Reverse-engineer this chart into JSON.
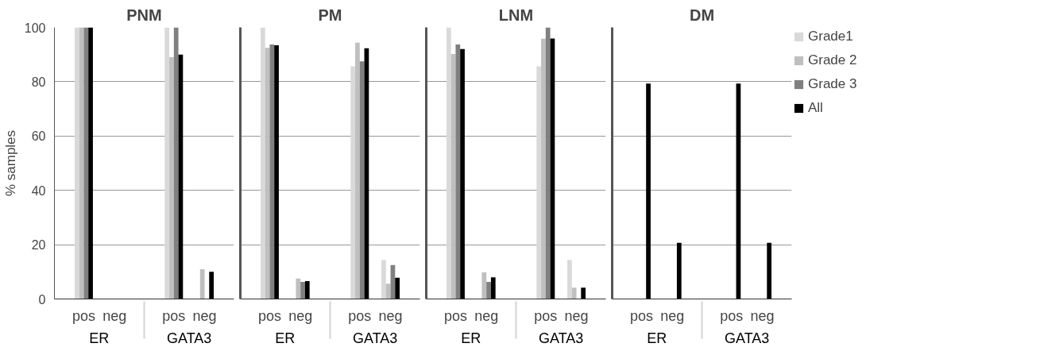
{
  "chart_data": [
    {
      "type": "bar",
      "title": "PNM",
      "ylabel": "% samples",
      "categories": [
        "pos",
        "neg",
        "pos",
        "neg"
      ],
      "annotations": [
        "ER",
        "GATA3"
      ],
      "ylim": [
        0,
        100
      ],
      "yticks": [
        0,
        20,
        40,
        60,
        80,
        100
      ],
      "grid": "y",
      "series": [
        {
          "color": "#d9d9d9",
          "values": [
            100,
            0,
            100,
            0
          ]
        },
        {
          "color": "#bfbfbf",
          "values": [
            100,
            0,
            89,
            11
          ]
        },
        {
          "color": "#808080",
          "values": [
            100,
            0,
            100,
            0
          ]
        },
        {
          "color": "#000000",
          "values": [
            100,
            0,
            90,
            10
          ]
        }
      ]
    },
    {
      "type": "bar",
      "title": "PM",
      "categories": [
        "pos",
        "neg",
        "pos",
        "neg"
      ],
      "annotations": [
        "ER",
        "GATA3"
      ],
      "ylim": [
        0,
        100
      ],
      "yticks": [
        0,
        20,
        40,
        60,
        80,
        100
      ],
      "grid": "y",
      "tick_labels": "x",
      "series": [
        {
          "color": "#d9d9d9",
          "values": [
            100,
            0,
            85.7,
            14.3
          ]
        },
        {
          "color": "#bfbfbf",
          "values": [
            92.5,
            7.5,
            94.4,
            5.6
          ]
        },
        {
          "color": "#808080",
          "values": [
            93.7,
            6.3,
            87.5,
            12.5
          ]
        },
        {
          "color": "#000000",
          "values": [
            93.4,
            6.6,
            92.3,
            7.8
          ]
        }
      ]
    },
    {
      "type": "bar",
      "title": "LNM",
      "categories": [
        "pos",
        "neg",
        "pos",
        "neg"
      ],
      "annotations": [
        "ER",
        "GATA3"
      ],
      "ylim": [
        0,
        100
      ],
      "yticks": [
        0,
        20,
        40,
        60,
        80,
        100
      ],
      "grid": "y",
      "tick_labels": "x",
      "series": [
        {
          "color": "#d9d9d9",
          "values": [
            100,
            0,
            85.7,
            14.3
          ]
        },
        {
          "color": "#bfbfbf",
          "values": [
            90.2,
            9.8,
            95.8,
            4.2
          ]
        },
        {
          "color": "#808080",
          "values": [
            93.7,
            6.3,
            100,
            0
          ]
        },
        {
          "color": "#000000",
          "values": [
            92,
            8,
            95.9,
            4.2
          ]
        }
      ]
    },
    {
      "type": "bar",
      "title": "DM",
      "categories": [
        "pos",
        "neg",
        "pos",
        "neg"
      ],
      "annotations": [
        "ER",
        "GATA3"
      ],
      "ylim": [
        0,
        100
      ],
      "yticks": [
        0,
        20,
        40,
        60,
        80,
        100
      ],
      "grid": "y",
      "tick_labels": "x",
      "legend": "right",
      "series": [
        {
          "name": "Grade1",
          "color": "#d9d9d9",
          "values": [
            0,
            0,
            0,
            0
          ]
        },
        {
          "name": "Grade 2",
          "color": "#bfbfbf",
          "values": [
            0,
            0,
            0,
            0
          ]
        },
        {
          "name": "Grade 3",
          "color": "#808080",
          "values": [
            0,
            0,
            0,
            0
          ]
        },
        {
          "name": "All",
          "color": "#000000",
          "values": [
            79.3,
            20.7,
            79.3,
            20.7
          ]
        }
      ]
    }
  ]
}
